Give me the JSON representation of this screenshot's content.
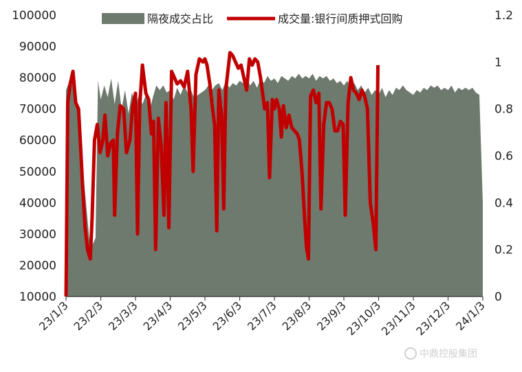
{
  "chart_data": {
    "type": "area",
    "categories": [
      "23/1/3",
      "23/2/3",
      "23/3/3",
      "23/4/3",
      "23/5/3",
      "23/6/3",
      "23/7/3",
      "23/8/3",
      "23/9/3",
      "23/10/3",
      "23/11/3",
      "23/12/3",
      "24/1/3"
    ],
    "y_left": {
      "min": 10000,
      "max": 100000,
      "ticks": [
        10000,
        20000,
        30000,
        40000,
        50000,
        60000,
        70000,
        80000,
        90000,
        100000
      ]
    },
    "y_right": {
      "min": 0,
      "max": 1.2,
      "ticks": [
        "0",
        "0.2",
        "0.4",
        "0.6",
        "0.8",
        "1",
        "1.2"
      ]
    },
    "series": [
      {
        "name": "隔夜成交占比",
        "type": "area",
        "axis": "right",
        "color": "#6e7a6e",
        "points": [
          [
            0,
            0.88
          ],
          [
            0.05,
            0.9
          ],
          [
            0.1,
            0.92
          ],
          [
            0.15,
            0.89
          ],
          [
            0.2,
            0.93
          ],
          [
            0.3,
            0.86
          ],
          [
            0.45,
            0.6
          ],
          [
            0.7,
            0.2
          ],
          [
            0.85,
            0.25
          ],
          [
            0.92,
            0.92
          ],
          [
            1.0,
            0.84
          ],
          [
            1.1,
            0.9
          ],
          [
            1.2,
            0.85
          ],
          [
            1.3,
            0.93
          ],
          [
            1.4,
            0.82
          ],
          [
            1.5,
            0.92
          ],
          [
            1.6,
            0.8
          ],
          [
            1.7,
            0.88
          ],
          [
            1.8,
            0.78
          ],
          [
            1.9,
            0.87
          ],
          [
            2.0,
            0.81
          ],
          [
            2.1,
            0.86
          ],
          [
            2.2,
            0.82
          ],
          [
            2.3,
            0.86
          ],
          [
            2.4,
            0.79
          ],
          [
            2.5,
            0.85
          ],
          [
            2.6,
            0.9
          ],
          [
            2.7,
            0.88
          ],
          [
            2.8,
            0.9
          ],
          [
            2.9,
            0.87
          ],
          [
            3.0,
            0.88
          ],
          [
            3.1,
            0.84
          ],
          [
            3.2,
            0.89
          ],
          [
            3.3,
            0.86
          ],
          [
            3.4,
            0.9
          ],
          [
            3.5,
            0.87
          ],
          [
            3.6,
            0.88
          ],
          [
            3.7,
            0.84
          ],
          [
            3.8,
            0.86
          ],
          [
            3.9,
            0.87
          ],
          [
            4.0,
            0.88
          ],
          [
            4.1,
            0.9
          ],
          [
            4.2,
            0.88
          ],
          [
            4.3,
            0.9
          ],
          [
            4.4,
            0.91
          ],
          [
            4.5,
            0.88
          ],
          [
            4.6,
            0.92
          ],
          [
            4.7,
            0.89
          ],
          [
            4.8,
            0.91
          ],
          [
            4.9,
            0.9
          ],
          [
            5.0,
            0.92
          ],
          [
            5.1,
            0.91
          ],
          [
            5.2,
            0.93
          ],
          [
            5.3,
            0.9
          ],
          [
            5.4,
            0.92
          ],
          [
            5.5,
            0.89
          ],
          [
            5.6,
            0.93
          ],
          [
            5.7,
            0.91
          ],
          [
            5.8,
            0.94
          ],
          [
            5.9,
            0.92
          ],
          [
            6.0,
            0.93
          ],
          [
            6.1,
            0.91
          ],
          [
            6.2,
            0.94
          ],
          [
            6.3,
            0.93
          ],
          [
            6.4,
            0.92
          ],
          [
            6.5,
            0.94
          ],
          [
            6.6,
            0.93
          ],
          [
            6.7,
            0.95
          ],
          [
            6.8,
            0.93
          ],
          [
            6.9,
            0.94
          ],
          [
            7.0,
            0.93
          ],
          [
            7.1,
            0.95
          ],
          [
            7.2,
            0.92
          ],
          [
            7.3,
            0.94
          ],
          [
            7.4,
            0.93
          ],
          [
            7.5,
            0.94
          ],
          [
            7.6,
            0.92
          ],
          [
            7.7,
            0.93
          ],
          [
            7.8,
            0.91
          ],
          [
            7.9,
            0.92
          ],
          [
            8.0,
            0.9
          ],
          [
            8.1,
            0.92
          ],
          [
            8.2,
            0.89
          ],
          [
            8.3,
            0.91
          ],
          [
            8.4,
            0.88
          ],
          [
            8.5,
            0.9
          ],
          [
            8.6,
            0.87
          ],
          [
            8.7,
            0.89
          ],
          [
            8.8,
            0.86
          ],
          [
            8.9,
            0.88
          ],
          [
            9.0,
            0.86
          ],
          [
            9.1,
            0.89
          ],
          [
            9.2,
            0.85
          ],
          [
            9.3,
            0.88
          ],
          [
            9.4,
            0.86
          ],
          [
            9.5,
            0.89
          ],
          [
            9.6,
            0.88
          ],
          [
            9.7,
            0.9
          ],
          [
            9.8,
            0.88
          ],
          [
            9.9,
            0.87
          ],
          [
            10.0,
            0.86
          ],
          [
            10.1,
            0.88
          ],
          [
            10.2,
            0.87
          ],
          [
            10.3,
            0.89
          ],
          [
            10.4,
            0.88
          ],
          [
            10.5,
            0.9
          ],
          [
            10.6,
            0.89
          ],
          [
            10.7,
            0.9
          ],
          [
            10.8,
            0.88
          ],
          [
            10.9,
            0.89
          ],
          [
            11.0,
            0.88
          ],
          [
            11.1,
            0.9
          ],
          [
            11.2,
            0.87
          ],
          [
            11.3,
            0.89
          ],
          [
            11.4,
            0.88
          ],
          [
            11.5,
            0.89
          ],
          [
            11.6,
            0.88
          ],
          [
            11.7,
            0.89
          ],
          [
            11.8,
            0.87
          ],
          [
            11.9,
            0.86
          ],
          [
            12.0,
            0.4
          ]
        ]
      },
      {
        "name": "成交量:银行间质押式回购",
        "type": "line",
        "axis": "left",
        "color": "#c00000",
        "points": [
          [
            0,
            10000
          ],
          [
            0.05,
            72000
          ],
          [
            0.12,
            78000
          ],
          [
            0.2,
            82000
          ],
          [
            0.28,
            72000
          ],
          [
            0.36,
            70000
          ],
          [
            0.42,
            58000
          ],
          [
            0.48,
            45000
          ],
          [
            0.55,
            32000
          ],
          [
            0.62,
            25000
          ],
          [
            0.7,
            22000
          ],
          [
            0.75,
            35000
          ],
          [
            0.82,
            60000
          ],
          [
            0.9,
            65000
          ],
          [
            0.98,
            56000
          ],
          [
            1.06,
            60000
          ],
          [
            1.12,
            68000
          ],
          [
            1.2,
            55000
          ],
          [
            1.28,
            59000
          ],
          [
            1.36,
            60000
          ],
          [
            1.4,
            36000
          ],
          [
            1.48,
            62000
          ],
          [
            1.56,
            71000
          ],
          [
            1.66,
            70000
          ],
          [
            1.74,
            56000
          ],
          [
            1.84,
            60000
          ],
          [
            1.92,
            71000
          ],
          [
            2.0,
            75000
          ],
          [
            2.06,
            30000
          ],
          [
            2.12,
            71000
          ],
          [
            2.2,
            84000
          ],
          [
            2.3,
            75000
          ],
          [
            2.38,
            73000
          ],
          [
            2.46,
            62000
          ],
          [
            2.52,
            66000
          ],
          [
            2.58,
            25000
          ],
          [
            2.66,
            67000
          ],
          [
            2.74,
            58000
          ],
          [
            2.82,
            36000
          ],
          [
            2.88,
            72000
          ],
          [
            2.96,
            32000
          ],
          [
            3.04,
            82000
          ],
          [
            3.12,
            80000
          ],
          [
            3.2,
            78000
          ],
          [
            3.3,
            79000
          ],
          [
            3.4,
            77000
          ],
          [
            3.5,
            82000
          ],
          [
            3.6,
            70000
          ],
          [
            3.66,
            50000
          ],
          [
            3.74,
            81000
          ],
          [
            3.84,
            86000
          ],
          [
            3.94,
            85000
          ],
          [
            4.0,
            86000
          ],
          [
            4.06,
            84000
          ],
          [
            4.14,
            78000
          ],
          [
            4.22,
            70000
          ],
          [
            4.28,
            65000
          ],
          [
            4.34,
            31000
          ],
          [
            4.4,
            76000
          ],
          [
            4.48,
            68000
          ],
          [
            4.54,
            38000
          ],
          [
            4.6,
            76000
          ],
          [
            4.66,
            82000
          ],
          [
            4.72,
            88000
          ],
          [
            4.8,
            87000
          ],
          [
            4.88,
            85000
          ],
          [
            4.96,
            83000
          ],
          [
            5.04,
            84000
          ],
          [
            5.12,
            80000
          ],
          [
            5.2,
            76000
          ],
          [
            5.28,
            86000
          ],
          [
            5.36,
            84000
          ],
          [
            5.44,
            86000
          ],
          [
            5.52,
            85000
          ],
          [
            5.6,
            80000
          ],
          [
            5.66,
            75000
          ],
          [
            5.72,
            70000
          ],
          [
            5.8,
            72000
          ],
          [
            5.86,
            48000
          ],
          [
            5.94,
            73000
          ],
          [
            6.0,
            70000
          ],
          [
            6.06,
            73000
          ],
          [
            6.14,
            70000
          ],
          [
            6.2,
            61000
          ],
          [
            6.26,
            71000
          ],
          [
            6.34,
            64000
          ],
          [
            6.42,
            68000
          ],
          [
            6.5,
            64000
          ],
          [
            6.58,
            63000
          ],
          [
            6.66,
            62000
          ],
          [
            6.72,
            60000
          ],
          [
            6.8,
            49000
          ],
          [
            6.86,
            37000
          ],
          [
            6.92,
            26000
          ],
          [
            6.98,
            22000
          ],
          [
            7.04,
            74000
          ],
          [
            7.12,
            76000
          ],
          [
            7.2,
            72000
          ],
          [
            7.28,
            75000
          ],
          [
            7.34,
            38000
          ],
          [
            7.42,
            65000
          ],
          [
            7.5,
            72000
          ],
          [
            7.58,
            72000
          ],
          [
            7.66,
            70000
          ],
          [
            7.74,
            63000
          ],
          [
            7.82,
            63000
          ],
          [
            7.9,
            66000
          ],
          [
            7.98,
            65000
          ],
          [
            8.04,
            36000
          ],
          [
            8.12,
            72000
          ],
          [
            8.2,
            80000
          ],
          [
            8.28,
            76000
          ],
          [
            8.36,
            75000
          ],
          [
            8.44,
            73000
          ],
          [
            8.52,
            76000
          ],
          [
            8.6,
            74000
          ],
          [
            8.68,
            70000
          ],
          [
            8.76,
            40000
          ],
          [
            8.84,
            34000
          ],
          [
            8.92,
            25000
          ],
          [
            8.98,
            84000
          ]
        ]
      }
    ]
  },
  "legend": {
    "area_label": "隔夜成交占比",
    "line_label": "成交量:银行间质押式回购",
    "placement": "top"
  },
  "watermark": {
    "text": "中鼎控股集团"
  },
  "colors": {
    "area": "#6e7a6e",
    "line": "#c00000",
    "axis": "#555555"
  }
}
